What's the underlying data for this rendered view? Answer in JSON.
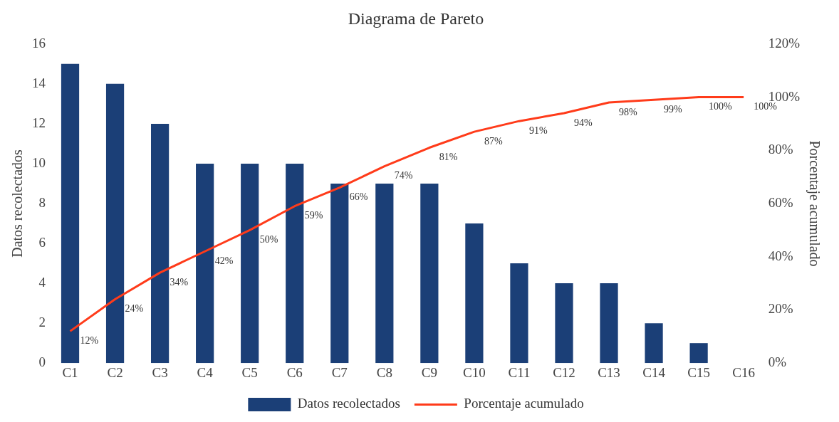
{
  "chart_data": {
    "type": "bar",
    "title": "Diagrama de Pareto",
    "ylabel": "Datos recolectados",
    "y2label": "Porcentaje acumulado",
    "categories": [
      "C1",
      "C2",
      "C3",
      "C4",
      "C5",
      "C6",
      "C7",
      "C8",
      "C9",
      "C10",
      "C11",
      "C12",
      "C13",
      "C14",
      "C15",
      "C16"
    ],
    "series": [
      {
        "name": "Datos recolectados",
        "color": "#1b3f77",
        "values": [
          15,
          14,
          12,
          10,
          10,
          10,
          9,
          9,
          9,
          7,
          5,
          4,
          4,
          2,
          1,
          0
        ]
      },
      {
        "name": "Porcentaje acumulado",
        "type": "line",
        "axis": "y2",
        "color": "#ff3b1a",
        "values": [
          12,
          24,
          34,
          42,
          50,
          59,
          66,
          74,
          81,
          87,
          91,
          94,
          98,
          99,
          100,
          100
        ],
        "value_labels": [
          "12%",
          "24%",
          "34%",
          "42%",
          "50%",
          "59%",
          "66%",
          "74%",
          "81%",
          "87%",
          "91%",
          "94%",
          "98%",
          "99%",
          "100%",
          "100%"
        ]
      }
    ],
    "ylim": [
      0,
      16
    ],
    "yticks": [
      0,
      2,
      4,
      6,
      8,
      10,
      12,
      14,
      16
    ],
    "y2lim": [
      0,
      120
    ],
    "y2ticks": [
      {
        "value": 0,
        "label": "0%"
      },
      {
        "value": 20,
        "label": "20%"
      },
      {
        "value": 40,
        "label": "40%"
      },
      {
        "value": 60,
        "label": "60%"
      },
      {
        "value": 80,
        "label": "80%"
      },
      {
        "value": 100,
        "label": "100%"
      },
      {
        "value": 120,
        "label": "120%"
      }
    ],
    "grid": false,
    "legend": "bottom",
    "marker": "none",
    "line_style": "solid"
  }
}
